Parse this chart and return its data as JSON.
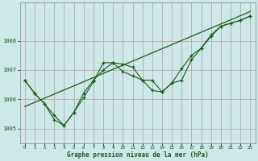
{
  "title": "Graphe pression niveau de la mer (hPa)",
  "bg_color": "#cce8e8",
  "grid_color": "#b8a8a8",
  "line_color": "#1a5c1a",
  "xlim": [
    -0.5,
    23.5
  ],
  "ylim": [
    1004.5,
    1009.3
  ],
  "yticks": [
    1005,
    1006,
    1007,
    1008
  ],
  "xticks": [
    0,
    1,
    2,
    3,
    4,
    5,
    6,
    7,
    8,
    9,
    10,
    11,
    12,
    13,
    14,
    15,
    16,
    17,
    18,
    19,
    20,
    21,
    22,
    23
  ],
  "series1_x": [
    0,
    1,
    2,
    3,
    4,
    5,
    6,
    7,
    8,
    9,
    10,
    11,
    12,
    13,
    14,
    15,
    16,
    17,
    18,
    19,
    20,
    21,
    22,
    23
  ],
  "series1_y": [
    1006.65,
    1006.2,
    1005.85,
    1005.3,
    1005.1,
    1005.55,
    1006.05,
    1006.6,
    1007.25,
    1007.25,
    1006.95,
    1006.8,
    1006.65,
    1006.3,
    1006.25,
    1006.55,
    1006.65,
    1007.35,
    1007.75,
    1008.2,
    1008.5,
    1008.6,
    1008.7,
    1008.85
  ],
  "series2_x": [
    0,
    1,
    2,
    3,
    4,
    5,
    6,
    7,
    8,
    9,
    10,
    11,
    12,
    13,
    14,
    15,
    16,
    17,
    18,
    19,
    20,
    21,
    22,
    23
  ],
  "series2_y": [
    1006.65,
    1006.2,
    1005.85,
    1005.45,
    1005.1,
    1005.55,
    1006.2,
    1006.65,
    1007.0,
    1007.25,
    1007.2,
    1007.1,
    1006.65,
    1006.65,
    1006.25,
    1006.55,
    1007.05,
    1007.5,
    1007.75,
    1008.15,
    1008.5,
    1008.6,
    1008.7,
    1008.85
  ],
  "trend_x": [
    0,
    23
  ],
  "trend_y": [
    1005.75,
    1009.0
  ]
}
